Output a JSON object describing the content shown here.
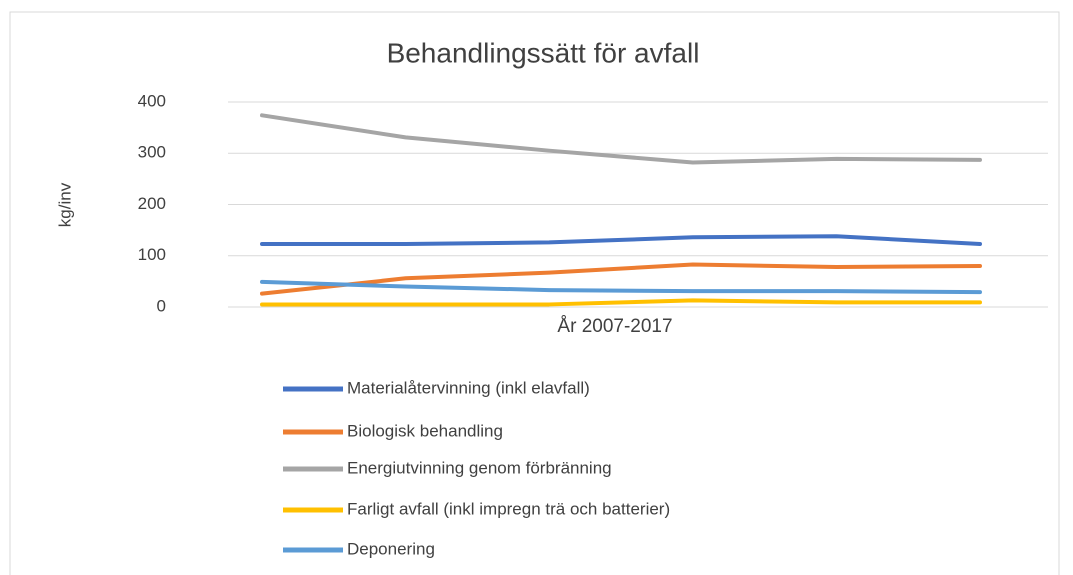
{
  "chart_data": {
    "type": "line",
    "title": "Behandlingssätt för avfall",
    "ylabel": "kg/inv",
    "xlabel": "År 2007-2017",
    "categories": [
      null,
      null,
      null,
      null,
      null,
      null
    ],
    "series": [
      {
        "name": "Materialåtervinning (inkl elavfall)",
        "color": "#4472c4",
        "values": [
          123,
          123,
          126,
          136,
          138,
          123
        ]
      },
      {
        "name": "Biologisk behandling",
        "color": "#ed7d31",
        "values": [
          26,
          56,
          67,
          83,
          78,
          80
        ]
      },
      {
        "name": "Energiutvinning genom förbränning",
        "color": "#a5a5a5",
        "values": [
          374,
          331,
          305,
          282,
          289,
          287
        ]
      },
      {
        "name": "Farligt avfall (inkl impregn trä och batterier)",
        "color": "#ffc000",
        "values": [
          5,
          5,
          5,
          13,
          9,
          9
        ]
      },
      {
        "name": "Deponering",
        "color": "#5b9bd5",
        "values": [
          49,
          40,
          33,
          31,
          31,
          29
        ]
      }
    ],
    "ylim": [
      0,
      400
    ],
    "yticks": [
      0,
      100,
      200,
      300,
      400
    ],
    "grid": true,
    "legend": "bottom"
  }
}
